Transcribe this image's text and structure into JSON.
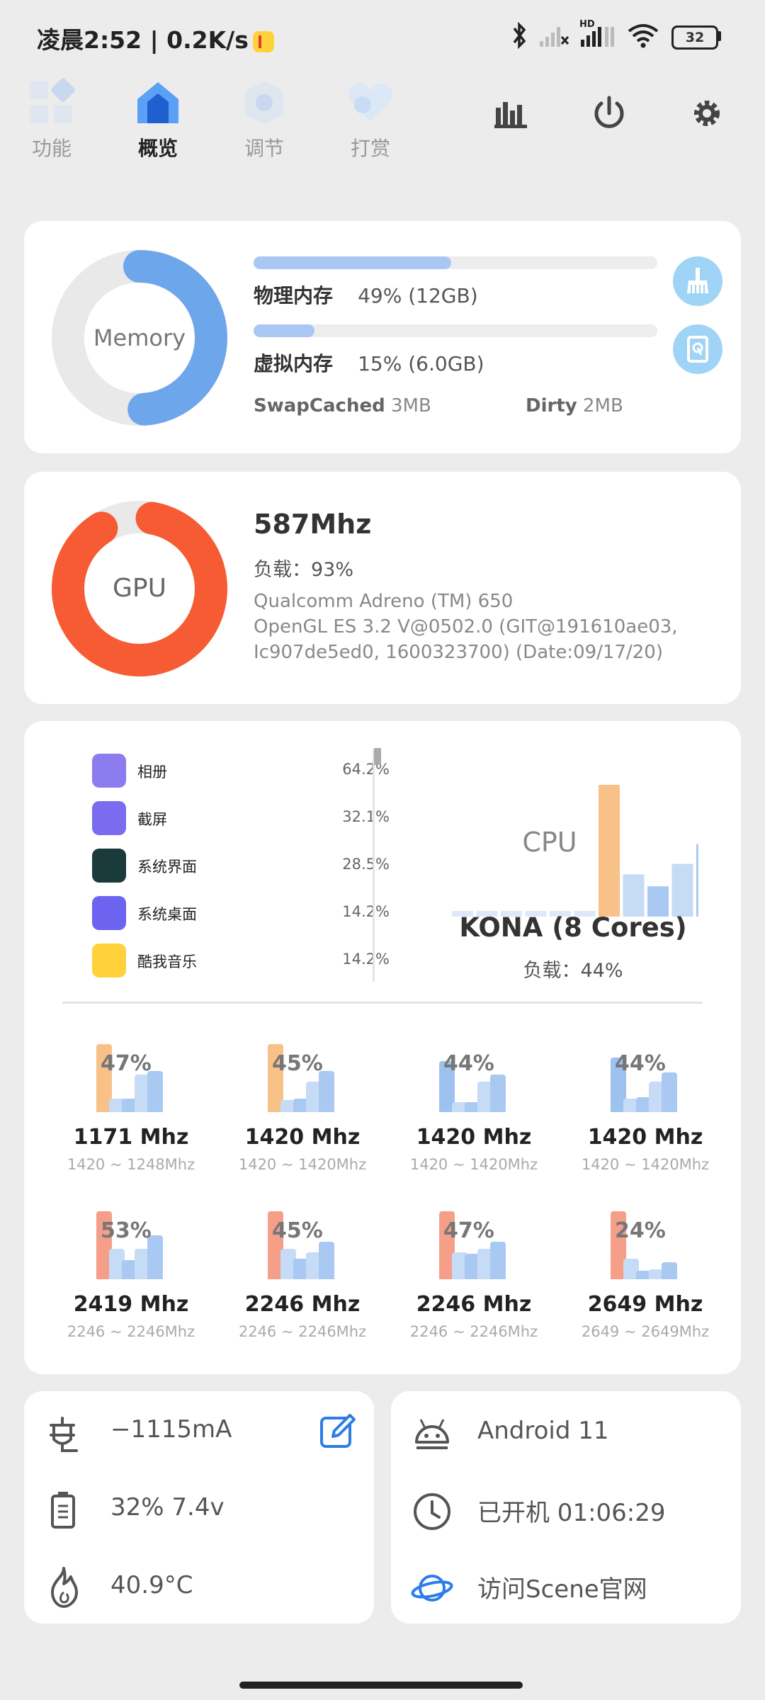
{
  "status": {
    "time_speed": "凌晨2:52 | 0.2K/s",
    "battery": "32",
    "hd": "HD"
  },
  "nav": {
    "items": [
      {
        "label": "功能",
        "icon": "grid-icon",
        "active": false
      },
      {
        "label": "概览",
        "icon": "home-icon",
        "active": true
      },
      {
        "label": "调节",
        "icon": "hexagon-icon",
        "active": false
      },
      {
        "label": "打赏",
        "icon": "heart-icon",
        "active": false
      }
    ],
    "tools": [
      "bar-chart-icon",
      "power-icon",
      "gear-icon"
    ]
  },
  "memory": {
    "ring_label": "Memory",
    "ring_percent": 49,
    "physical": {
      "label": "物理内存",
      "value": "49% (12GB)",
      "fill": 0.49
    },
    "virtual": {
      "label": "虚拟内存",
      "value": "15% (6.0GB)",
      "fill": 0.15
    },
    "swapcached_label": "SwapCached",
    "swapcached_value": "3MB",
    "dirty_label": "Dirty",
    "dirty_value": "2MB"
  },
  "gpu": {
    "ring_label": "GPU",
    "ring_percent": 93,
    "freq": "587Mhz",
    "load": "负载：93%",
    "renderer": "Qualcomm Adreno (TM) 650",
    "gl_line1": "OpenGL ES 3.2 V@0502.0 (GIT@191610ae03,",
    "gl_line2": "Ic907de5ed0, 1600323700) (Date:09/17/20)"
  },
  "processes": [
    {
      "name": "相册",
      "pct": "64.2%",
      "color": "#8c7cf0"
    },
    {
      "name": "截屏",
      "pct": "32.1%",
      "color": "#7a6cf0"
    },
    {
      "name": "系统界面",
      "pct": "28.5%",
      "color": "#1b3a3a"
    },
    {
      "name": "系统桌面",
      "pct": "14.2%",
      "color": "#6c63f0"
    },
    {
      "name": "酷我音乐",
      "pct": "14.2%",
      "color": "#ffd23c"
    }
  ],
  "cpu": {
    "label": "CPU",
    "model": "KONA (8 Cores)",
    "load": "负载：44%",
    "bars": [
      4,
      4,
      4,
      4,
      4,
      4,
      100,
      32,
      23,
      40,
      55
    ]
  },
  "cores": [
    {
      "pct": "47%",
      "freq": "1171 Mhz",
      "range": "1420 ~ 1248Mhz",
      "lead": "#f8c188",
      "bars": [
        100,
        20,
        20,
        55,
        60
      ]
    },
    {
      "pct": "45%",
      "freq": "1420 Mhz",
      "range": "1420 ~ 1420Mhz",
      "lead": "#f8c188",
      "bars": [
        100,
        18,
        20,
        45,
        60
      ]
    },
    {
      "pct": "44%",
      "freq": "1420 Mhz",
      "range": "1420 ~ 1420Mhz",
      "lead": "#9dc2f0",
      "bars": [
        75,
        15,
        15,
        45,
        55
      ]
    },
    {
      "pct": "44%",
      "freq": "1420 Mhz",
      "range": "1420 ~ 1420Mhz",
      "lead": "#9dc2f0",
      "bars": [
        80,
        20,
        22,
        45,
        58
      ]
    },
    {
      "pct": "53%",
      "freq": "2419 Mhz",
      "range": "2246 ~ 2246Mhz",
      "lead": "#f59f89",
      "bars": [
        100,
        45,
        28,
        45,
        65
      ]
    },
    {
      "pct": "45%",
      "freq": "2246 Mhz",
      "range": "2246 ~ 2246Mhz",
      "lead": "#f59f89",
      "bars": [
        100,
        45,
        30,
        40,
        55
      ]
    },
    {
      "pct": "47%",
      "freq": "2246 Mhz",
      "range": "2246 ~ 2246Mhz",
      "lead": "#f59f89",
      "bars": [
        100,
        40,
        38,
        45,
        55
      ]
    },
    {
      "pct": "24%",
      "freq": "2649 Mhz",
      "range": "2649 ~ 2649Mhz",
      "lead": "#f59f89",
      "bars": [
        100,
        30,
        12,
        15,
        25
      ]
    }
  ],
  "battery": {
    "current": "−1115mA",
    "level_voltage": "32%  7.4v",
    "temperature": "40.9°C"
  },
  "system": {
    "android": "Android 11",
    "uptime": "已开机  01:06:29",
    "website": "访问Scene官网"
  }
}
